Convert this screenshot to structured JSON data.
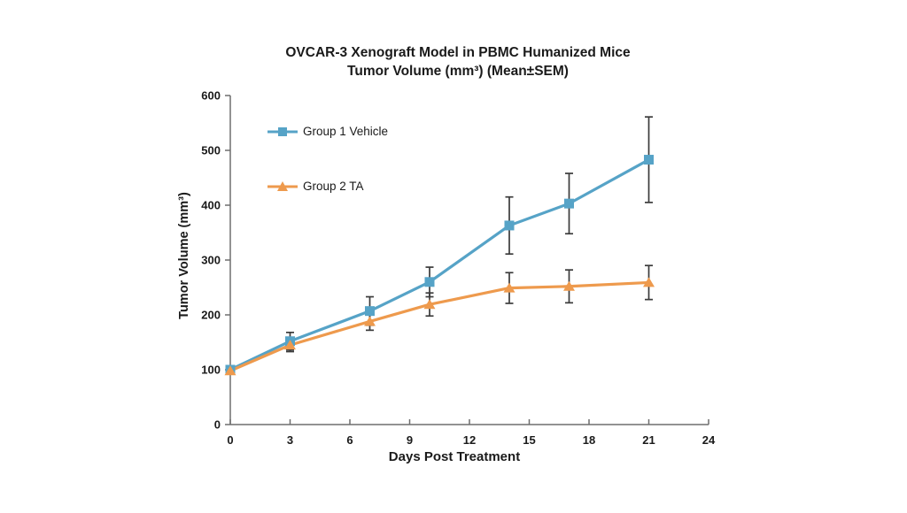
{
  "chart": {
    "title_line1": "OVCAR-3 Xenograft Model in PBMC Humanized Mice",
    "title_line2": "Tumor Volume (mm³) (Mean±SEM)",
    "xlabel": "Days Post Treatment",
    "ylabel": "Tumor Volume (mm³)"
  },
  "chart_data": {
    "type": "line",
    "title": "OVCAR-3 Xenograft Model in PBMC Humanized Mice",
    "subtitle": "Tumor Volume (mm³) (Mean±SEM)",
    "xlabel": "Days Post Treatment",
    "ylabel": "Tumor Volume (mm³)",
    "error_bars": "SEM",
    "grid": false,
    "legend_position": "inside-top-left",
    "x": [
      0,
      3,
      7,
      10,
      14,
      17,
      21
    ],
    "xlim": [
      0,
      24
    ],
    "xticks": [
      0,
      3,
      6,
      9,
      12,
      15,
      18,
      21,
      24
    ],
    "ylim": [
      0,
      600
    ],
    "yticks": [
      0,
      100,
      200,
      300,
      400,
      500,
      600
    ],
    "series": [
      {
        "name": "Group 1 Vehicle",
        "color": "#56A3C7",
        "marker": "square",
        "values": [
          100,
          152,
          207,
          260,
          363,
          403,
          483
        ],
        "sem": [
          6,
          16,
          26,
          27,
          52,
          55,
          78
        ]
      },
      {
        "name": "Group 2 TA",
        "color": "#EE9A4D",
        "marker": "triangle",
        "values": [
          98,
          145,
          188,
          219,
          249,
          252,
          259
        ],
        "sem": [
          6,
          12,
          16,
          21,
          28,
          30,
          31
        ]
      }
    ]
  },
  "style": {
    "axis_color": "#6e6e6e",
    "error_bar_color": "#3b3b3b",
    "tick_label_color": "#1a1a1a"
  }
}
